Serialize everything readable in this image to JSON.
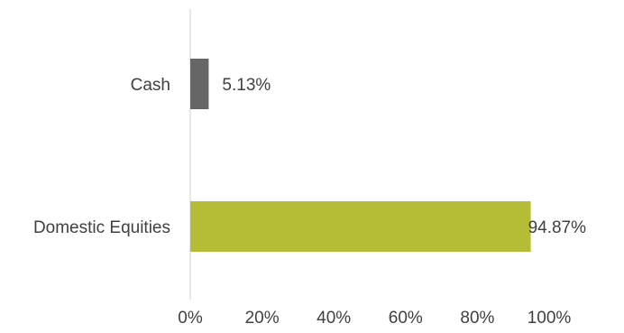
{
  "chart_data": {
    "type": "bar",
    "orientation": "horizontal",
    "categories": [
      "Cash",
      "Domestic Equities"
    ],
    "values": [
      5.13,
      94.87
    ],
    "data_labels": [
      "5.13%",
      "94.87%"
    ],
    "colors": [
      "#666666",
      "#b5bd37"
    ],
    "xlim": [
      0,
      100
    ],
    "x_ticks": [
      0,
      20,
      40,
      60,
      80,
      100
    ],
    "x_tick_labels": [
      "0%",
      "20%",
      "40%",
      "60%",
      "80%",
      "100%"
    ],
    "grid": false,
    "legend": "none"
  }
}
